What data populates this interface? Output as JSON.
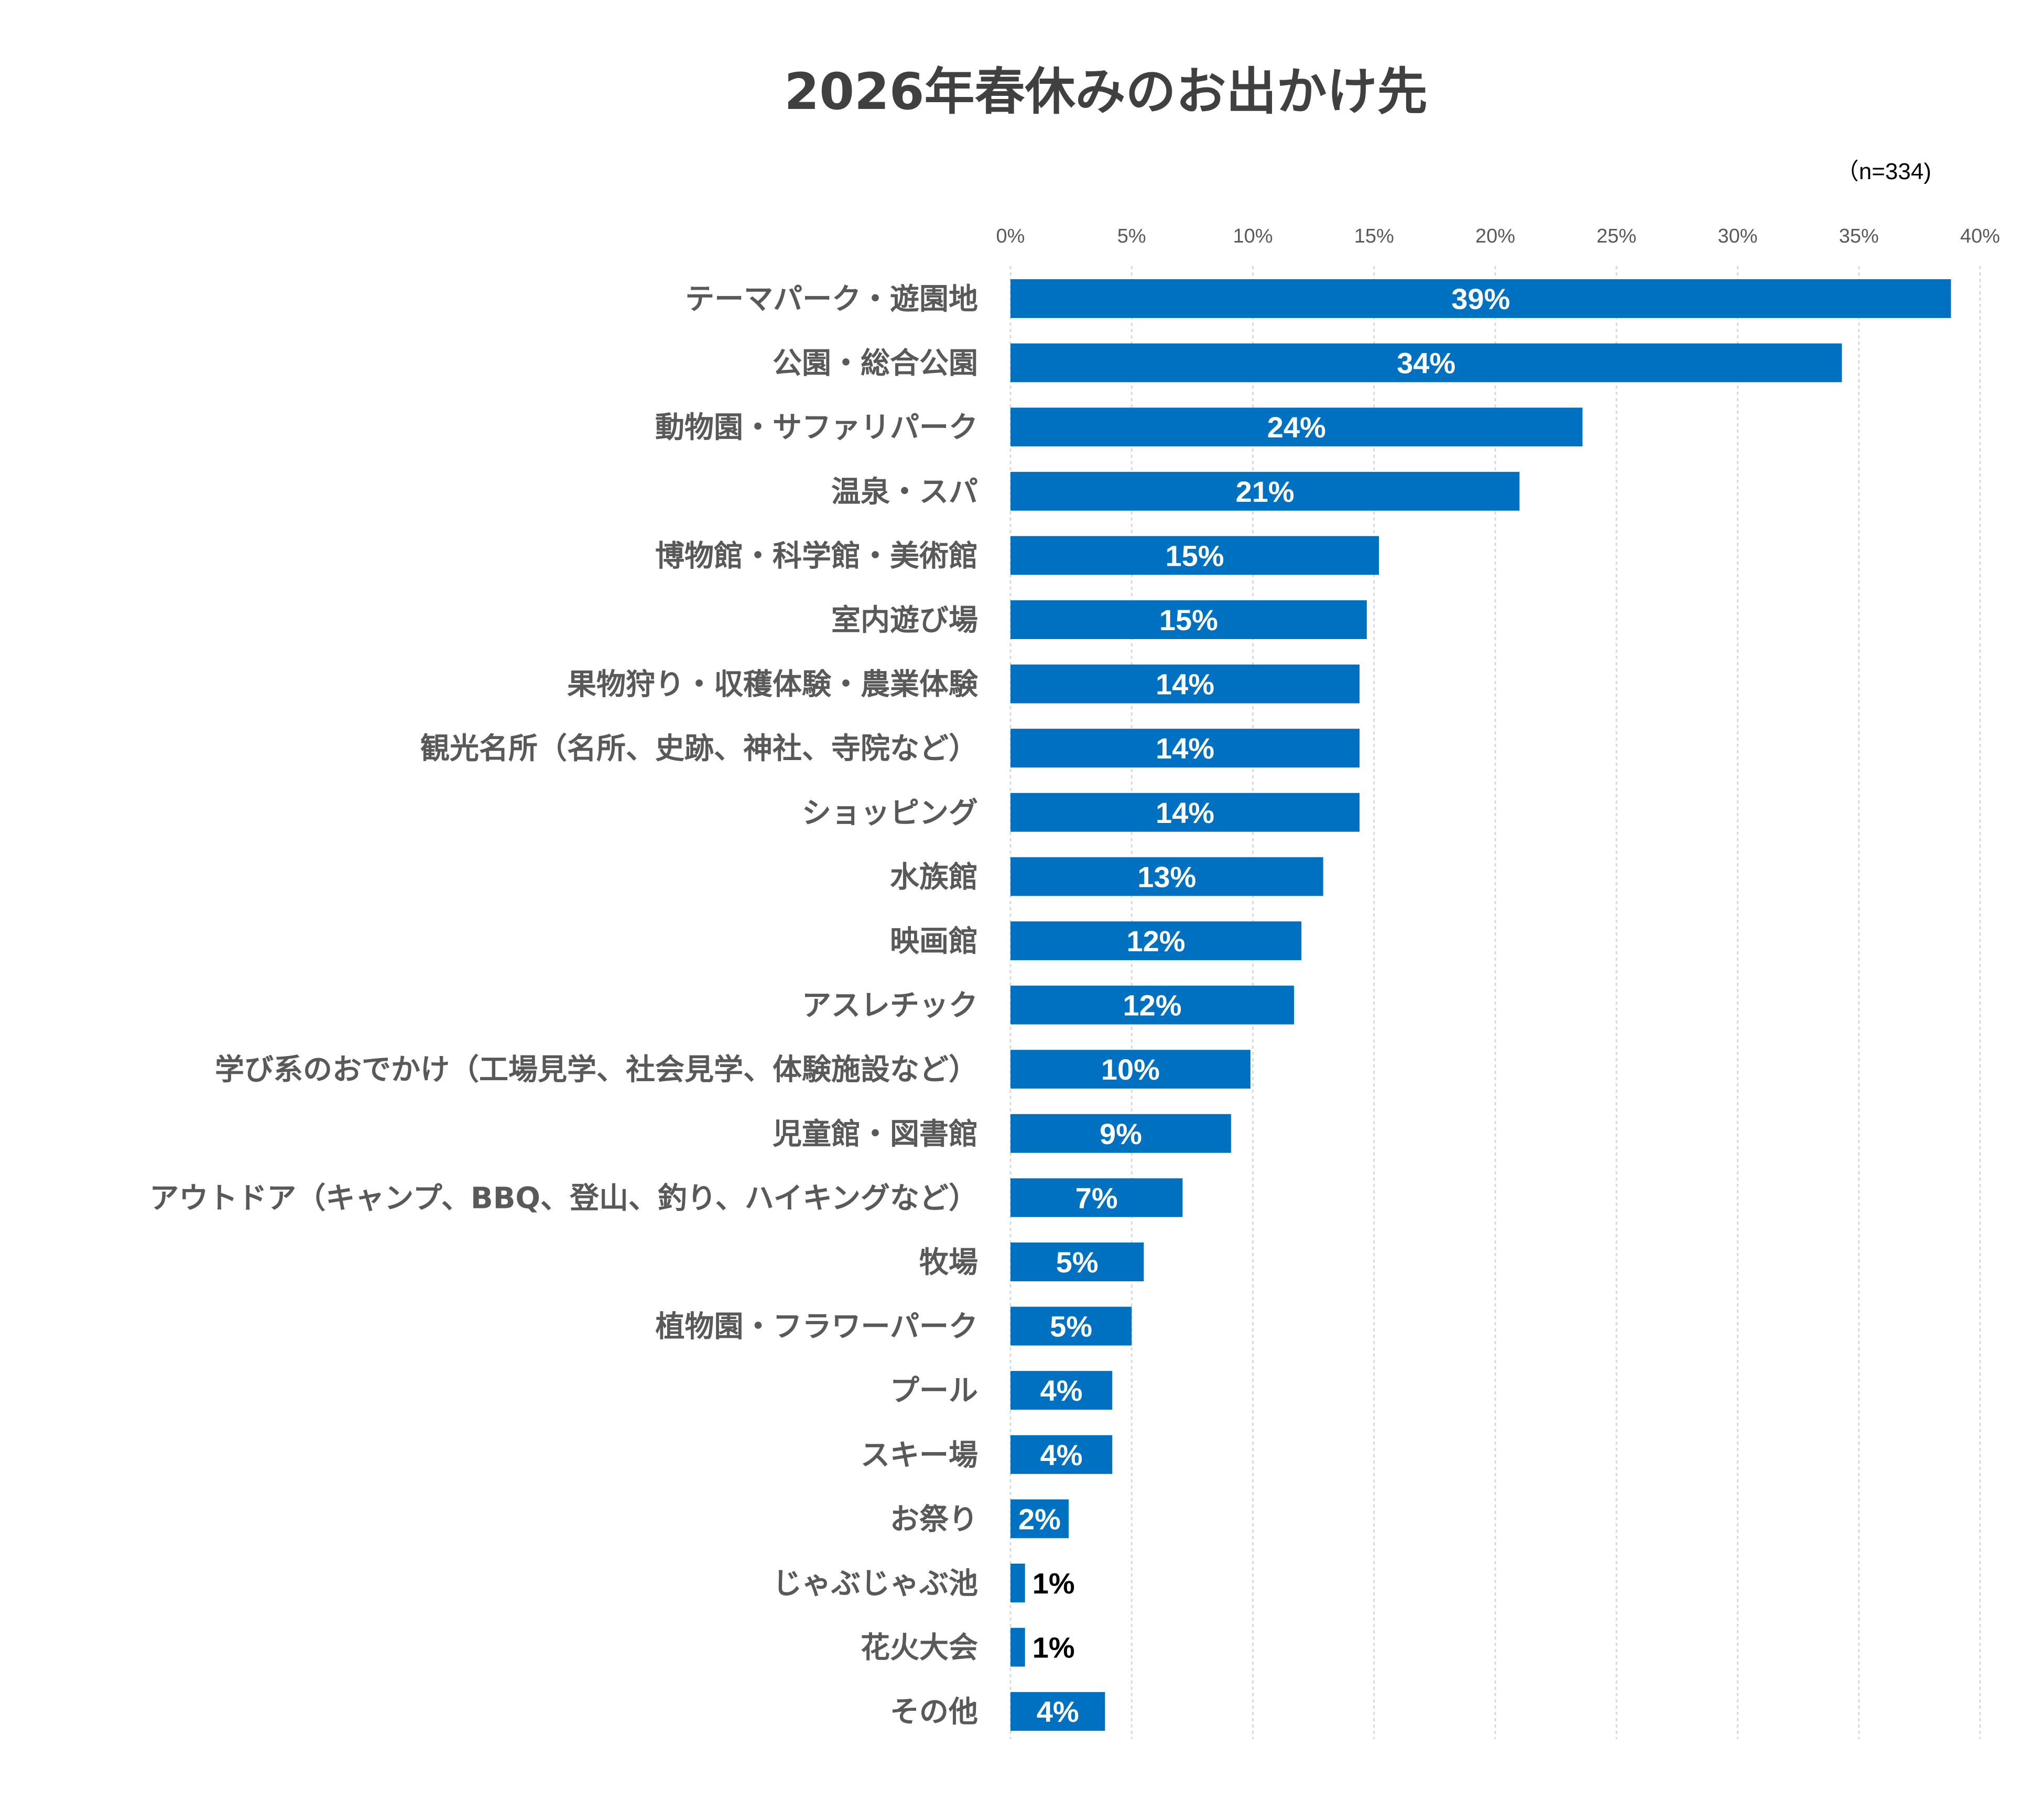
{
  "chart_data": {
    "type": "bar",
    "orientation": "horizontal",
    "title": "2026年春休みのお出かけ先",
    "note": "（n=334)",
    "xlim": [
      0,
      40
    ],
    "x_tick_values": [
      0,
      5,
      10,
      15,
      20,
      25,
      30,
      35,
      40
    ],
    "x_tick_labels": [
      "0%",
      "5%",
      "10%",
      "15%",
      "20%",
      "25%",
      "30%",
      "35%",
      "40%"
    ],
    "grid": true,
    "legend": "none",
    "bar_color": "#0070C0",
    "categories": [
      "テーマパーク・遊園地",
      "公園・総合公園",
      "動物園・サファリパーク",
      "温泉・スパ",
      "博物館・科学館・美術館",
      "室内遊び場",
      "果物狩り・収穫体験・農業体験",
      "観光名所（名所、史跡、神社、寺院など）",
      "ショッピング",
      "水族館",
      "映画館",
      "アスレチック",
      "学び系のおでかけ（工場見学、社会見学、体験施設など）",
      "児童館・図書館",
      "アウトドア（キャンプ、BBQ、登山、釣り、ハイキングなど）",
      "牧場",
      "植物園・フラワーパーク",
      "プール",
      "スキー場",
      "お祭り",
      "じゃぶじゃぶ池",
      "花火大会",
      "その他"
    ],
    "values": [
      38.8,
      34.3,
      23.6,
      21.0,
      15.2,
      14.7,
      14.4,
      14.4,
      14.4,
      12.9,
      12.0,
      11.7,
      9.9,
      9.1,
      7.1,
      5.5,
      5.0,
      4.2,
      4.2,
      2.4,
      0.6,
      0.6,
      3.9
    ],
    "value_labels": [
      "39%",
      "34%",
      "24%",
      "21%",
      "15%",
      "15%",
      "14%",
      "14%",
      "14%",
      "13%",
      "12%",
      "12%",
      "10%",
      "9%",
      "7%",
      "5%",
      "5%",
      "4%",
      "4%",
      "2%",
      "1%",
      "1%",
      "4%"
    ]
  }
}
